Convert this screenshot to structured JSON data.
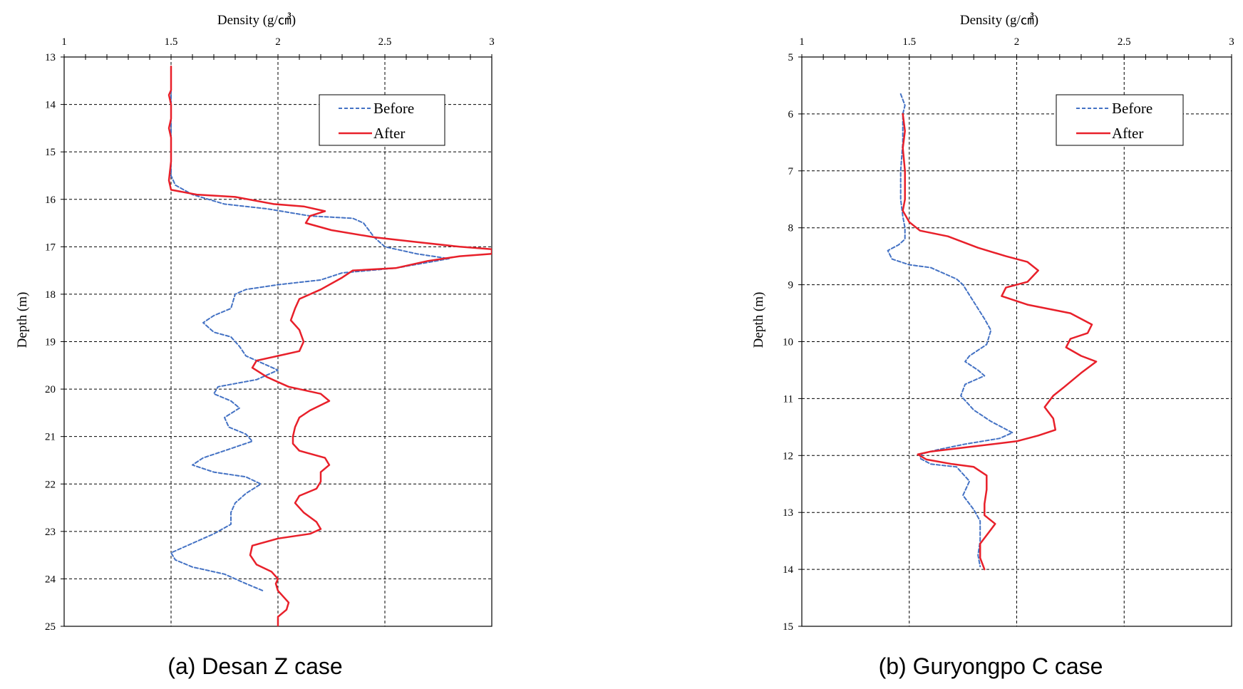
{
  "chart_data": [
    {
      "type": "line",
      "caption": "(a) Desan Z case",
      "xlabel": "Density (g/㎤)",
      "ylabel": "Depth (m)",
      "xlim": [
        1,
        3
      ],
      "ylim": [
        13,
        25
      ],
      "x_ticks": [
        1,
        1.5,
        2,
        2.5,
        3
      ],
      "x_tick_labels": [
        "1",
        "1.5",
        "2",
        "2.5",
        "3"
      ],
      "y_ticks": [
        13,
        14,
        15,
        16,
        17,
        18,
        19,
        20,
        21,
        22,
        23,
        24,
        25
      ],
      "y_inverted": true,
      "x_axis_position": "top",
      "grid": true,
      "legend_position": "top-right",
      "series": [
        {
          "name": "Before",
          "color": "#4472c4",
          "style": "dashed",
          "points": [
            [
              1.5,
              13.2
            ],
            [
              1.5,
              14.0
            ],
            [
              1.5,
              15.0
            ],
            [
              1.5,
              15.5
            ],
            [
              1.52,
              15.7
            ],
            [
              1.6,
              15.9
            ],
            [
              1.75,
              16.1
            ],
            [
              1.95,
              16.2
            ],
            [
              2.15,
              16.35
            ],
            [
              2.35,
              16.4
            ],
            [
              2.4,
              16.5
            ],
            [
              2.45,
              16.8
            ],
            [
              2.5,
              17.0
            ],
            [
              2.65,
              17.15
            ],
            [
              2.8,
              17.25
            ],
            [
              2.55,
              17.45
            ],
            [
              2.3,
              17.55
            ],
            [
              2.2,
              17.7
            ],
            [
              2.0,
              17.8
            ],
            [
              1.85,
              17.9
            ],
            [
              1.8,
              18.0
            ],
            [
              1.78,
              18.3
            ],
            [
              1.7,
              18.45
            ],
            [
              1.65,
              18.6
            ],
            [
              1.7,
              18.8
            ],
            [
              1.78,
              18.9
            ],
            [
              1.82,
              19.1
            ],
            [
              1.85,
              19.3
            ],
            [
              1.95,
              19.5
            ],
            [
              2.0,
              19.6
            ],
            [
              1.9,
              19.8
            ],
            [
              1.72,
              19.95
            ],
            [
              1.7,
              20.1
            ],
            [
              1.78,
              20.25
            ],
            [
              1.82,
              20.4
            ],
            [
              1.75,
              20.6
            ],
            [
              1.77,
              20.8
            ],
            [
              1.85,
              20.95
            ],
            [
              1.88,
              21.1
            ],
            [
              1.75,
              21.3
            ],
            [
              1.65,
              21.45
            ],
            [
              1.6,
              21.6
            ],
            [
              1.7,
              21.75
            ],
            [
              1.85,
              21.85
            ],
            [
              1.92,
              22.0
            ],
            [
              1.85,
              22.2
            ],
            [
              1.8,
              22.4
            ],
            [
              1.78,
              22.6
            ],
            [
              1.78,
              22.85
            ],
            [
              1.7,
              23.05
            ],
            [
              1.6,
              23.25
            ],
            [
              1.5,
              23.45
            ],
            [
              1.52,
              23.6
            ],
            [
              1.6,
              23.75
            ],
            [
              1.75,
              23.9
            ],
            [
              1.85,
              24.1
            ],
            [
              1.93,
              24.25
            ]
          ]
        },
        {
          "name": "After",
          "color": "#e8202a",
          "style": "solid",
          "points": [
            [
              1.5,
              13.2
            ],
            [
              1.5,
              13.7
            ],
            [
              1.49,
              13.8
            ],
            [
              1.5,
              14.0
            ],
            [
              1.5,
              14.3
            ],
            [
              1.49,
              14.5
            ],
            [
              1.5,
              14.7
            ],
            [
              1.5,
              15.2
            ],
            [
              1.49,
              15.6
            ],
            [
              1.5,
              15.8
            ],
            [
              1.62,
              15.9
            ],
            [
              1.8,
              15.95
            ],
            [
              1.98,
              16.1
            ],
            [
              2.12,
              16.15
            ],
            [
              2.22,
              16.25
            ],
            [
              2.15,
              16.35
            ],
            [
              2.13,
              16.5
            ],
            [
              2.25,
              16.65
            ],
            [
              2.45,
              16.8
            ],
            [
              2.65,
              16.9
            ],
            [
              2.85,
              17.0
            ],
            [
              3.0,
              17.05
            ],
            [
              3.0,
              17.15
            ],
            [
              2.85,
              17.2
            ],
            [
              2.7,
              17.3
            ],
            [
              2.55,
              17.45
            ],
            [
              2.35,
              17.5
            ],
            [
              2.3,
              17.65
            ],
            [
              2.2,
              17.9
            ],
            [
              2.1,
              18.1
            ],
            [
              2.08,
              18.3
            ],
            [
              2.06,
              18.55
            ],
            [
              2.1,
              18.75
            ],
            [
              2.12,
              19.0
            ],
            [
              2.1,
              19.2
            ],
            [
              2.0,
              19.3
            ],
            [
              1.9,
              19.4
            ],
            [
              1.88,
              19.55
            ],
            [
              1.95,
              19.75
            ],
            [
              2.05,
              19.95
            ],
            [
              2.2,
              20.1
            ],
            [
              2.24,
              20.25
            ],
            [
              2.15,
              20.45
            ],
            [
              2.1,
              20.6
            ],
            [
              2.08,
              20.8
            ],
            [
              2.07,
              21.0
            ],
            [
              2.07,
              21.15
            ],
            [
              2.1,
              21.3
            ],
            [
              2.22,
              21.45
            ],
            [
              2.24,
              21.6
            ],
            [
              2.2,
              21.75
            ],
            [
              2.2,
              21.95
            ],
            [
              2.18,
              22.1
            ],
            [
              2.1,
              22.25
            ],
            [
              2.08,
              22.4
            ],
            [
              2.12,
              22.6
            ],
            [
              2.18,
              22.8
            ],
            [
              2.2,
              22.95
            ],
            [
              2.15,
              23.05
            ],
            [
              2.0,
              23.15
            ],
            [
              1.88,
              23.3
            ],
            [
              1.87,
              23.5
            ],
            [
              1.9,
              23.7
            ],
            [
              1.97,
              23.85
            ],
            [
              2.0,
              24.0
            ],
            [
              1.99,
              24.1
            ],
            [
              2.0,
              24.25
            ],
            [
              2.02,
              24.35
            ],
            [
              2.05,
              24.5
            ],
            [
              2.04,
              24.65
            ],
            [
              2.0,
              24.8
            ],
            [
              2.0,
              25.0
            ]
          ]
        }
      ]
    },
    {
      "type": "line",
      "caption": "(b) Guryongpo C case",
      "xlabel": "Density (g/㎤)",
      "ylabel": "Depth (m)",
      "xlim": [
        1,
        3
      ],
      "ylim": [
        5,
        15
      ],
      "x_ticks": [
        1,
        1.5,
        2,
        2.5,
        3
      ],
      "x_tick_labels": [
        "1",
        "1.5",
        "2",
        "2.5",
        "3"
      ],
      "y_ticks": [
        5,
        6,
        7,
        8,
        9,
        10,
        11,
        12,
        13,
        14,
        15
      ],
      "y_inverted": true,
      "x_axis_position": "top",
      "grid": true,
      "legend_position": "top-right",
      "series": [
        {
          "name": "Before",
          "color": "#4472c4",
          "style": "dashed",
          "points": [
            [
              1.46,
              5.65
            ],
            [
              1.48,
              5.85
            ],
            [
              1.47,
              6.0
            ],
            [
              1.47,
              6.5
            ],
            [
              1.46,
              7.0
            ],
            [
              1.46,
              7.5
            ],
            [
              1.47,
              7.8
            ],
            [
              1.48,
              8.0
            ],
            [
              1.48,
              8.2
            ],
            [
              1.45,
              8.3
            ],
            [
              1.4,
              8.4
            ],
            [
              1.42,
              8.55
            ],
            [
              1.5,
              8.65
            ],
            [
              1.6,
              8.7
            ],
            [
              1.66,
              8.8
            ],
            [
              1.72,
              8.9
            ],
            [
              1.75,
              9.0
            ],
            [
              1.8,
              9.3
            ],
            [
              1.85,
              9.6
            ],
            [
              1.88,
              9.8
            ],
            [
              1.86,
              10.05
            ],
            [
              1.78,
              10.25
            ],
            [
              1.76,
              10.35
            ],
            [
              1.82,
              10.5
            ],
            [
              1.85,
              10.6
            ],
            [
              1.76,
              10.75
            ],
            [
              1.74,
              10.95
            ],
            [
              1.8,
              11.2
            ],
            [
              1.88,
              11.4
            ],
            [
              1.98,
              11.6
            ],
            [
              1.92,
              11.7
            ],
            [
              1.76,
              11.8
            ],
            [
              1.63,
              11.9
            ],
            [
              1.56,
              11.97
            ],
            [
              1.55,
              12.05
            ],
            [
              1.6,
              12.15
            ],
            [
              1.72,
              12.2
            ],
            [
              1.78,
              12.45
            ],
            [
              1.75,
              12.7
            ],
            [
              1.8,
              12.95
            ],
            [
              1.83,
              13.15
            ],
            [
              1.83,
              13.5
            ],
            [
              1.82,
              13.75
            ],
            [
              1.83,
              13.95
            ]
          ]
        },
        {
          "name": "After",
          "color": "#e8202a",
          "style": "solid",
          "points": [
            [
              1.47,
              6.0
            ],
            [
              1.48,
              6.3
            ],
            [
              1.47,
              6.6
            ],
            [
              1.48,
              7.0
            ],
            [
              1.48,
              7.5
            ],
            [
              1.47,
              7.7
            ],
            [
              1.5,
              7.9
            ],
            [
              1.55,
              8.05
            ],
            [
              1.68,
              8.15
            ],
            [
              1.82,
              8.35
            ],
            [
              1.95,
              8.5
            ],
            [
              2.05,
              8.6
            ],
            [
              2.1,
              8.75
            ],
            [
              2.05,
              8.95
            ],
            [
              1.95,
              9.05
            ],
            [
              1.93,
              9.2
            ],
            [
              2.05,
              9.35
            ],
            [
              2.25,
              9.5
            ],
            [
              2.35,
              9.7
            ],
            [
              2.33,
              9.85
            ],
            [
              2.25,
              9.95
            ],
            [
              2.23,
              10.1
            ],
            [
              2.3,
              10.25
            ],
            [
              2.37,
              10.35
            ],
            [
              2.3,
              10.55
            ],
            [
              2.22,
              10.8
            ],
            [
              2.17,
              10.95
            ],
            [
              2.13,
              11.15
            ],
            [
              2.17,
              11.35
            ],
            [
              2.18,
              11.55
            ],
            [
              2.1,
              11.65
            ],
            [
              2.0,
              11.75
            ],
            [
              1.78,
              11.85
            ],
            [
              1.6,
              11.93
            ],
            [
              1.54,
              11.98
            ],
            [
              1.58,
              12.07
            ],
            [
              1.7,
              12.15
            ],
            [
              1.8,
              12.2
            ],
            [
              1.86,
              12.35
            ],
            [
              1.86,
              12.6
            ],
            [
              1.85,
              12.85
            ],
            [
              1.85,
              13.05
            ],
            [
              1.9,
              13.2
            ],
            [
              1.87,
              13.35
            ],
            [
              1.83,
              13.55
            ],
            [
              1.83,
              13.8
            ],
            [
              1.85,
              14.0
            ]
          ]
        }
      ]
    }
  ]
}
